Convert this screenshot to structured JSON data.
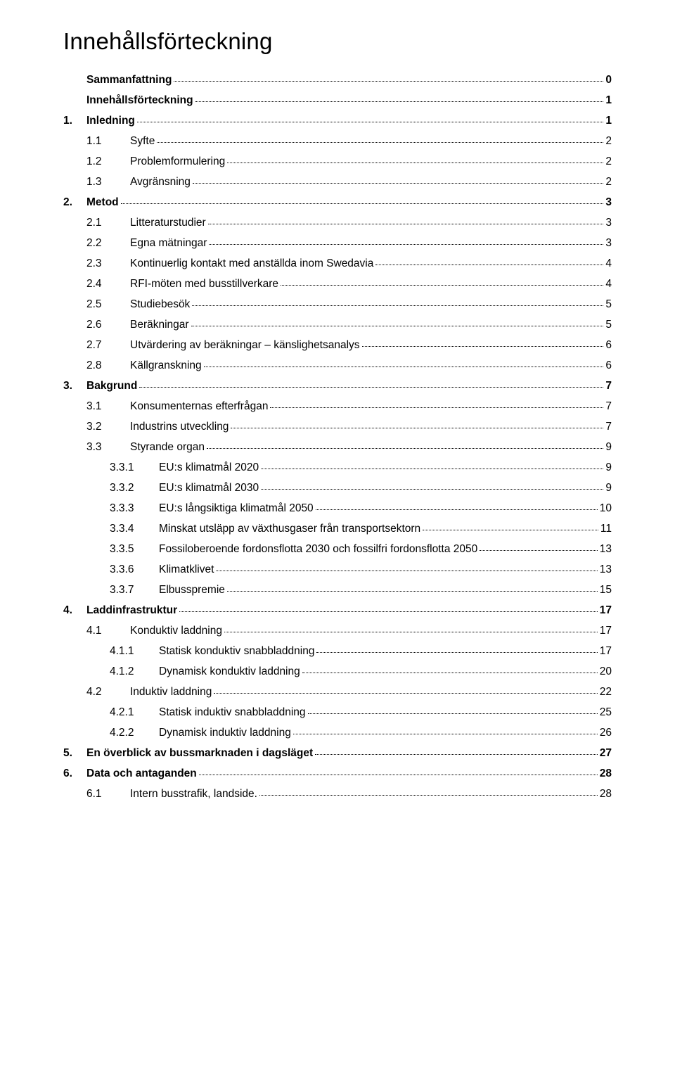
{
  "title": "Innehållsförteckning",
  "entries": [
    {
      "level": 0,
      "num": "",
      "label": "Sammanfattning",
      "page": "0"
    },
    {
      "level": 0,
      "num": "",
      "label": "Innehållsförteckning",
      "page": "1"
    },
    {
      "level": 0,
      "num": "1.",
      "label": "Inledning",
      "page": "1"
    },
    {
      "level": 1,
      "num": "1.1",
      "label": "Syfte",
      "page": "2"
    },
    {
      "level": 1,
      "num": "1.2",
      "label": "Problemformulering",
      "page": "2"
    },
    {
      "level": 1,
      "num": "1.3",
      "label": "Avgränsning",
      "page": "2"
    },
    {
      "level": 0,
      "num": "2.",
      "label": "Metod",
      "page": "3"
    },
    {
      "level": 1,
      "num": "2.1",
      "label": "Litteraturstudier",
      "page": "3"
    },
    {
      "level": 1,
      "num": "2.2",
      "label": "Egna mätningar",
      "page": "3"
    },
    {
      "level": 1,
      "num": "2.3",
      "label": "Kontinuerlig kontakt med anställda inom Swedavia",
      "page": "4"
    },
    {
      "level": 1,
      "num": "2.4",
      "label": "RFI-möten med busstillverkare",
      "page": "4"
    },
    {
      "level": 1,
      "num": "2.5",
      "label": "Studiebesök",
      "page": "5"
    },
    {
      "level": 1,
      "num": "2.6",
      "label": "Beräkningar",
      "page": "5"
    },
    {
      "level": 1,
      "num": "2.7",
      "label": "Utvärdering av beräkningar – känslighetsanalys",
      "page": "6"
    },
    {
      "level": 1,
      "num": "2.8",
      "label": "Källgranskning",
      "page": "6"
    },
    {
      "level": 0,
      "num": "3.",
      "label": "Bakgrund",
      "page": "7"
    },
    {
      "level": 1,
      "num": "3.1",
      "label": "Konsumenternas efterfrågan",
      "page": "7"
    },
    {
      "level": 1,
      "num": "3.2",
      "label": "Industrins utveckling",
      "page": "7"
    },
    {
      "level": 1,
      "num": "3.3",
      "label": "Styrande organ",
      "page": "9"
    },
    {
      "level": 2,
      "num": "3.3.1",
      "label": "EU:s klimatmål 2020",
      "page": "9"
    },
    {
      "level": 2,
      "num": "3.3.2",
      "label": "EU:s klimatmål 2030",
      "page": "9"
    },
    {
      "level": 2,
      "num": "3.3.3",
      "label": "EU:s långsiktiga klimatmål 2050",
      "page": "10"
    },
    {
      "level": 2,
      "num": "3.3.4",
      "label": "Minskat utsläpp av växthusgaser från transportsektorn",
      "page": "11"
    },
    {
      "level": 2,
      "num": "3.3.5",
      "label": "Fossiloberoende fordonsflotta 2030 och fossilfri fordonsflotta 2050",
      "page": "13"
    },
    {
      "level": 2,
      "num": "3.3.6",
      "label": "Klimatklivet",
      "page": "13"
    },
    {
      "level": 2,
      "num": "3.3.7",
      "label": "Elbusspremie",
      "page": "15"
    },
    {
      "level": 0,
      "num": "4.",
      "label": "Laddinfrastruktur",
      "page": "17"
    },
    {
      "level": 1,
      "num": "4.1",
      "label": "Konduktiv laddning",
      "page": "17"
    },
    {
      "level": 2,
      "num": "4.1.1",
      "label": "Statisk konduktiv snabbladdning",
      "page": "17"
    },
    {
      "level": 2,
      "num": "4.1.2",
      "label": "Dynamisk konduktiv laddning",
      "page": "20"
    },
    {
      "level": 1,
      "num": "4.2",
      "label": "Induktiv laddning",
      "page": "22"
    },
    {
      "level": 2,
      "num": "4.2.1",
      "label": "Statisk induktiv snabbladdning",
      "page": "25"
    },
    {
      "level": 2,
      "num": "4.2.2",
      "label": "Dynamisk induktiv laddning",
      "page": "26"
    },
    {
      "level": 0,
      "num": "5.",
      "label": "En överblick av bussmarknaden i dagsläget",
      "page": "27"
    },
    {
      "level": 0,
      "num": "6.",
      "label": "Data och antaganden",
      "page": "28"
    },
    {
      "level": 1,
      "num": "6.1",
      "label": "Intern busstrafik, landside.",
      "page": "28"
    }
  ]
}
